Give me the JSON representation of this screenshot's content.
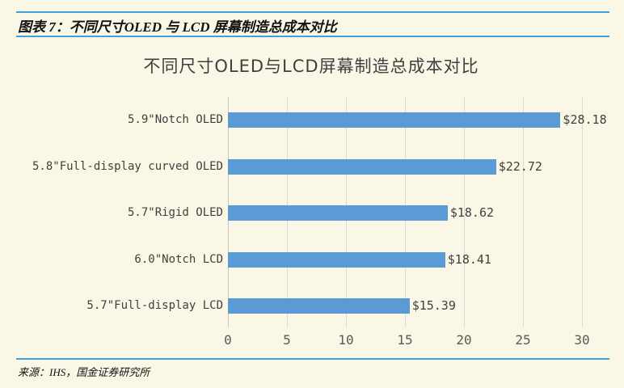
{
  "window": {
    "background": "#FBF7E6"
  },
  "header": {
    "label": "图表 7：不同尺寸OLED 与 LCD 屏幕制造总成本对比",
    "rule_color": "#41A0DC"
  },
  "footer": {
    "source": "来源：IHS，国金证券研究所"
  },
  "chart_data": {
    "type": "bar",
    "orientation": "horizontal",
    "title": "不同尺寸OLED与LCD屏幕制造总成本对比",
    "categories": [
      "5.9\"Notch OLED",
      "5.8\"Full-display curved OLED",
      "5.7\"Rigid OLED",
      "6.0\"Notch LCD",
      "5.7\"Full-display LCD"
    ],
    "values": [
      28.18,
      22.72,
      18.62,
      18.41,
      15.39
    ],
    "value_labels": [
      "$28.18",
      "$22.72",
      "$18.62",
      "$18.41",
      "$15.39"
    ],
    "xlim": [
      0,
      30
    ],
    "xticks": [
      0,
      5,
      10,
      15,
      20,
      25,
      30
    ],
    "xlabel": "",
    "ylabel": "",
    "grid": true,
    "legend": "none",
    "bar_color": "#5B9BD5",
    "gridline_color": "#D9D9D9",
    "axis_line_color": "#C6C6C6",
    "label_color": "#3F3F3F",
    "tick_color": "#595959"
  }
}
